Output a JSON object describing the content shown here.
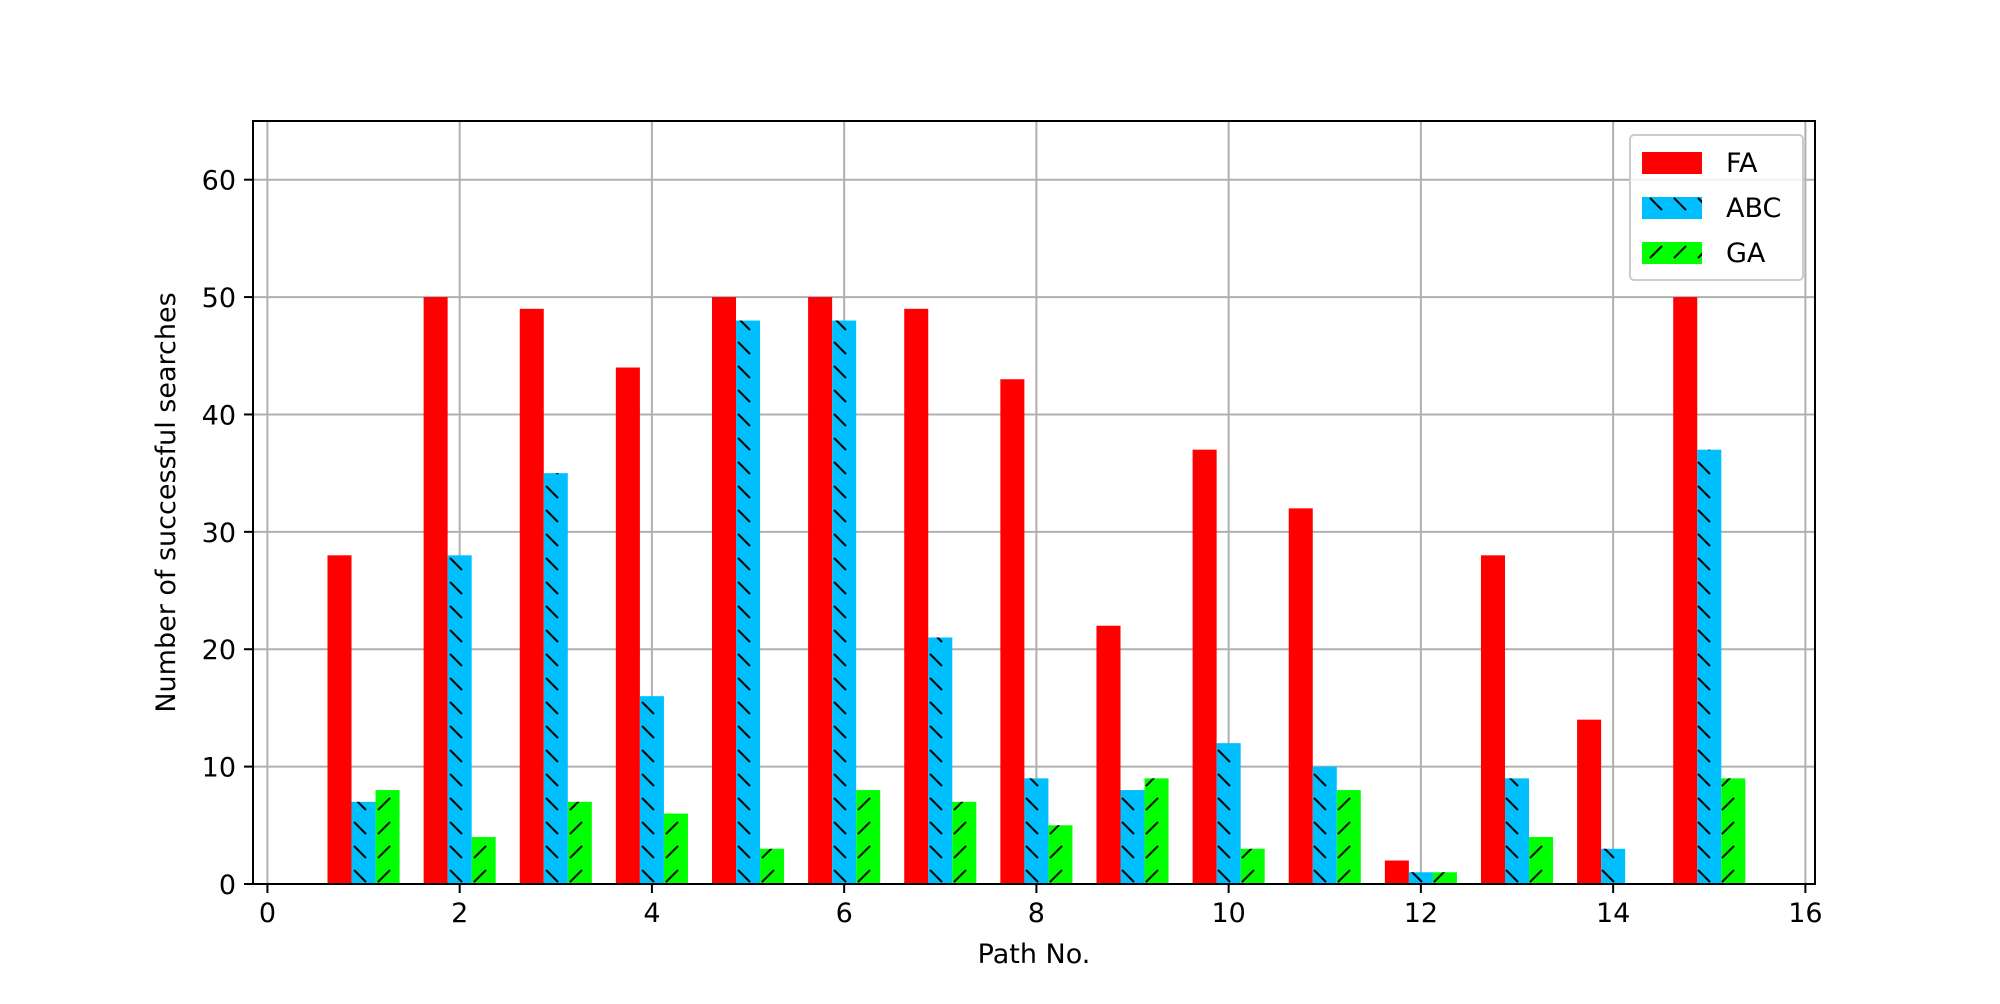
{
  "chart_data": {
    "type": "bar",
    "title": "",
    "xlabel": "Path No.",
    "ylabel": "Number of successful searches",
    "x": [
      1,
      2,
      3,
      4,
      5,
      6,
      7,
      8,
      9,
      10,
      11,
      12,
      13,
      14,
      15
    ],
    "xlim": [
      -0.15,
      16.1
    ],
    "ylim": [
      0,
      65
    ],
    "xticks": [
      0,
      2,
      4,
      6,
      8,
      10,
      12,
      14,
      16
    ],
    "yticks": [
      0,
      10,
      20,
      30,
      40,
      50,
      60
    ],
    "grid": true,
    "legend_position": "top-right",
    "bar_width": 0.25,
    "series": [
      {
        "name": "FA",
        "color": "#ff0000",
        "hatch": "none",
        "offset": -0.25,
        "values": [
          28,
          50,
          49,
          44,
          50,
          50,
          49,
          43,
          22,
          37,
          32,
          2,
          28,
          14,
          50
        ]
      },
      {
        "name": "ABC",
        "color": "#00bfff",
        "hatch": "backslash",
        "offset": 0,
        "values": [
          7,
          28,
          35,
          16,
          48,
          48,
          21,
          9,
          8,
          12,
          10,
          1,
          9,
          3,
          37
        ]
      },
      {
        "name": "GA",
        "color": "#00ff00",
        "hatch": "slash",
        "offset": 0.25,
        "values": [
          8,
          4,
          7,
          6,
          3,
          8,
          7,
          5,
          9,
          3,
          8,
          1,
          4,
          0,
          9
        ]
      }
    ]
  }
}
